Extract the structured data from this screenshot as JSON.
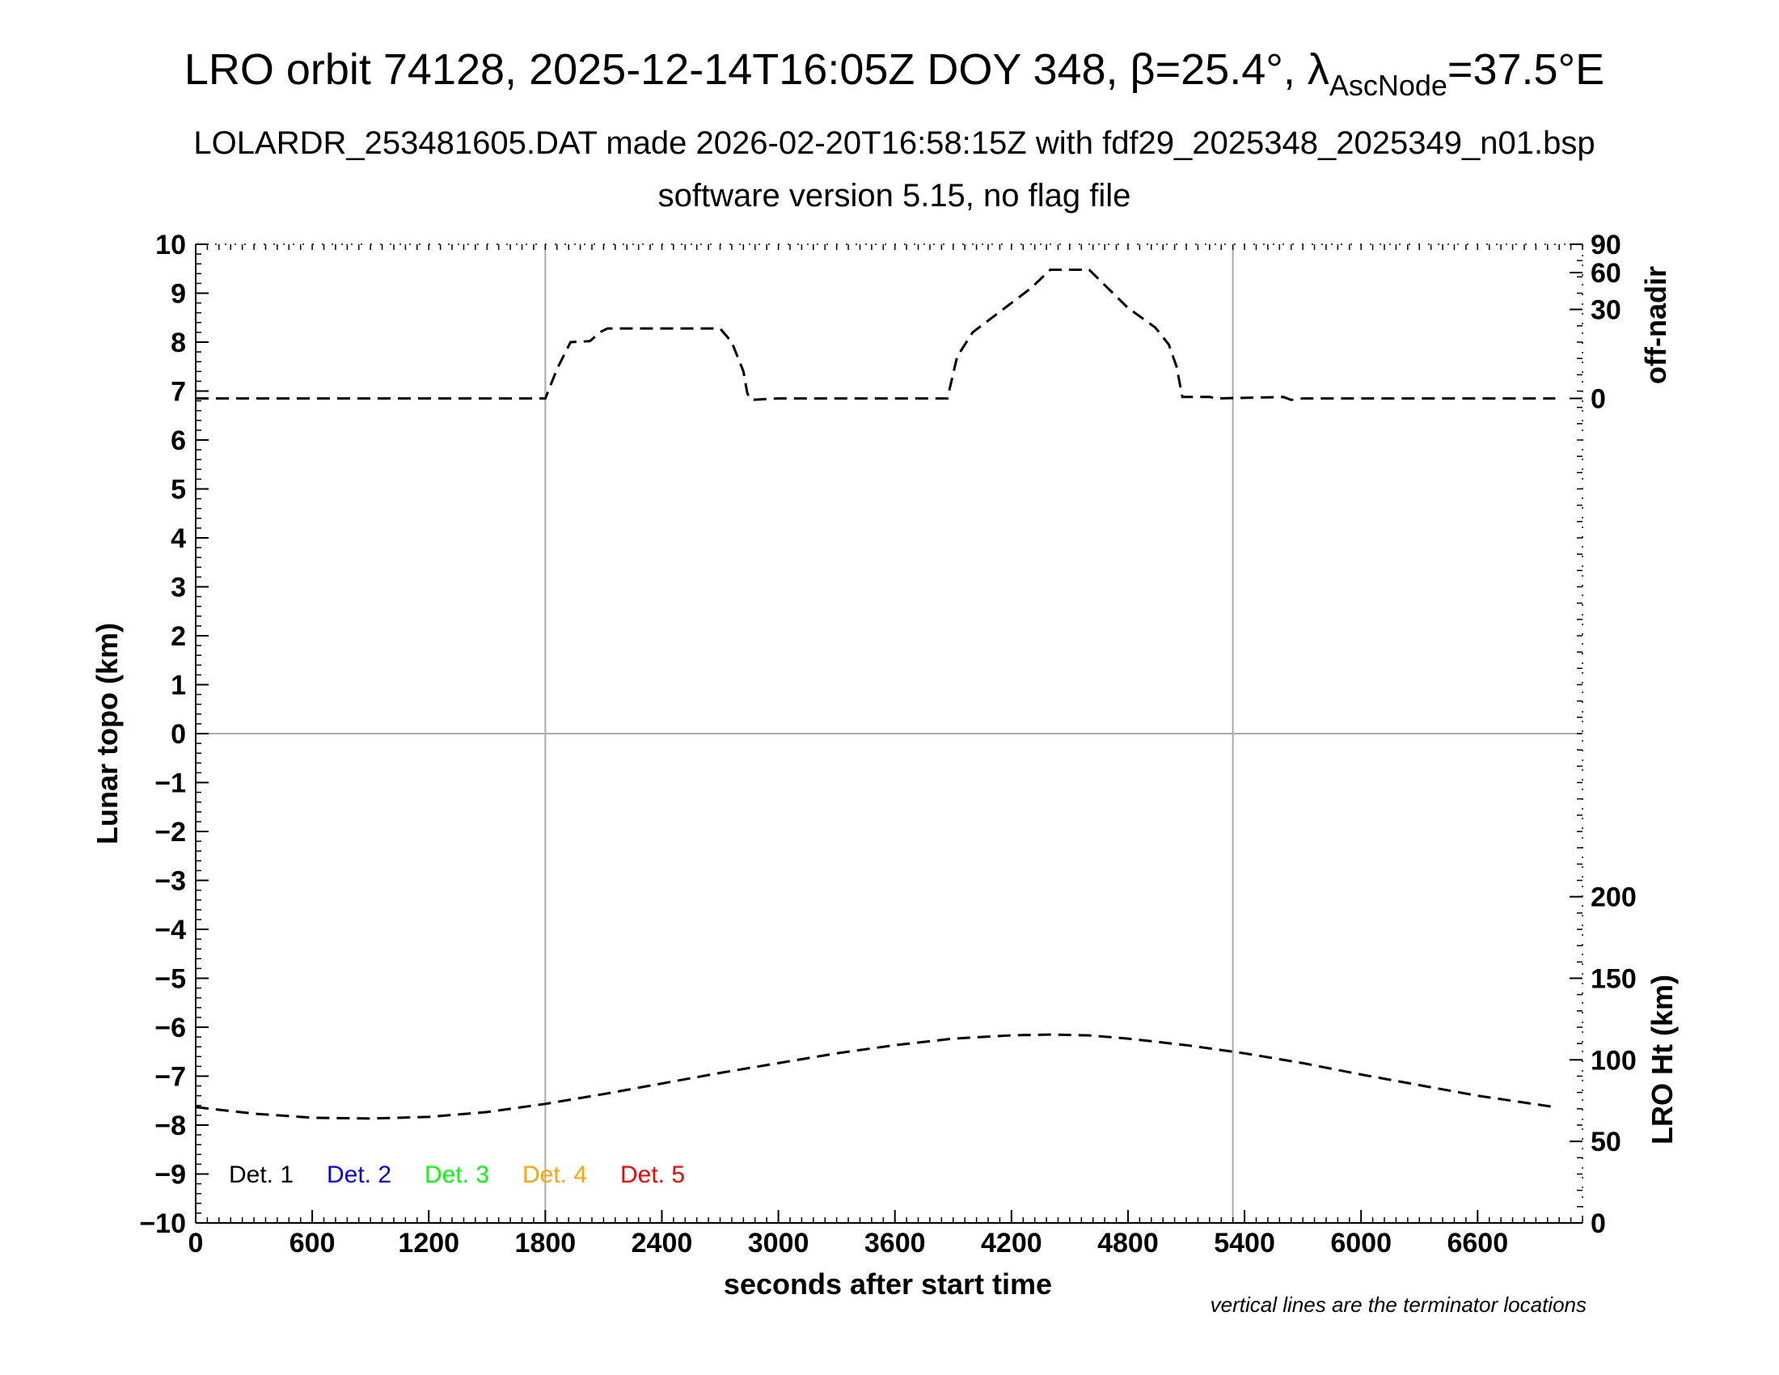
{
  "header": {
    "title_main": "LRO orbit 74128, 2025-12-14T16:05Z DOY 348, β=25.4°, λ",
    "title_sub": "AscNode",
    "title_end": "=37.5°E",
    "subtitle_1": "LOLARDR_253481605.DAT made 2026-02-20T16:58:15Z with fdf29_2025348_2025349_n01.bsp",
    "subtitle_2": "software version 5.15, no flag file"
  },
  "footnote": "vertical lines are the terminator locations",
  "chart_data": {
    "type": "line",
    "xlabel": "seconds after start time",
    "ylabel": "Lunar topo (km)",
    "y2_upper_label": "off-nadir",
    "y2_lower_label": "LRO Ht (km)",
    "xlim": [
      0,
      7140
    ],
    "ylim": [
      -10,
      10
    ],
    "x_ticks": [
      0,
      600,
      1200,
      1800,
      2400,
      3000,
      3600,
      4200,
      4800,
      5400,
      6000,
      6600
    ],
    "y_ticks": [
      10,
      9,
      8,
      7,
      6,
      5,
      4,
      3,
      2,
      1,
      0,
      -1,
      -2,
      -3,
      -4,
      -5,
      -6,
      -7,
      -8,
      -9,
      -10
    ],
    "y_tick_labels": [
      "10",
      "9",
      "8",
      "7",
      "6",
      "5",
      "4",
      "3",
      "2",
      "1",
      "0",
      "−1",
      "−2",
      "−3",
      "−4",
      "−5",
      "−6",
      "−7",
      "−8",
      "−9",
      "−10"
    ],
    "off_nadir_ticks": [
      {
        "label": "90",
        "deg": 90
      },
      {
        "label": "60",
        "deg": 60
      },
      {
        "label": "30",
        "deg": 30
      },
      {
        "label": "0",
        "deg": 0
      }
    ],
    "height_ticks": [
      {
        "label": "200",
        "km": 200
      },
      {
        "label": "150",
        "km": 150
      },
      {
        "label": "100",
        "km": 100
      },
      {
        "label": "50",
        "km": 50
      },
      {
        "label": "0",
        "km": 0
      }
    ],
    "height_range_km": [
      0,
      600
    ],
    "terminator_lines_x": [
      1800,
      5340
    ],
    "zero_line_y": 0,
    "grid": false,
    "legend_position": "bottom-left",
    "legend": [
      {
        "name": "Det. 1",
        "color": "#000000"
      },
      {
        "name": "Det. 2",
        "color": "#0000ff"
      },
      {
        "name": "Det. 3",
        "color": "#00ff00"
      },
      {
        "name": "Det. 4",
        "color": "#ffa500"
      },
      {
        "name": "Det. 5",
        "color": "#ff0000"
      }
    ],
    "series": [
      {
        "role": "off-nadir",
        "units": "topo-km axis position",
        "style": "dashed",
        "x": [
          0,
          1000,
          1800,
          1860,
          1930,
          2030,
          2080,
          2120,
          2380,
          2700,
          2760,
          2820,
          2840,
          2860,
          3000,
          3600,
          3870,
          3920,
          4000,
          4200,
          4300,
          4400,
          4600,
          4800,
          4940,
          5010,
          5050,
          5080,
          5220,
          5260,
          5600,
          5640,
          5700,
          7000
        ],
        "y": [
          6.85,
          6.85,
          6.85,
          7.45,
          8.0,
          8.02,
          8.2,
          8.28,
          8.28,
          8.28,
          8.0,
          7.4,
          6.95,
          6.82,
          6.85,
          6.85,
          6.85,
          7.7,
          8.2,
          8.8,
          9.1,
          9.48,
          9.48,
          8.7,
          8.3,
          7.95,
          7.5,
          6.88,
          6.88,
          6.85,
          6.88,
          6.82,
          6.85,
          6.85
        ]
      },
      {
        "role": "LRO Ht",
        "units": "km",
        "style": "dashed",
        "x": [
          0,
          300,
          600,
          900,
          1200,
          1500,
          1800,
          2100,
          2400,
          2700,
          3000,
          3300,
          3600,
          3900,
          4200,
          4400,
          4600,
          4800,
          5100,
          5400,
          5700,
          6000,
          6300,
          6600,
          7000
        ],
        "y": [
          71,
          67,
          64.5,
          64,
          65,
          68,
          73,
          79,
          85.5,
          92,
          98,
          104,
          109,
          113,
          115,
          115.5,
          115,
          113,
          109,
          104,
          98,
          91,
          84.5,
          78,
          71
        ]
      }
    ]
  }
}
